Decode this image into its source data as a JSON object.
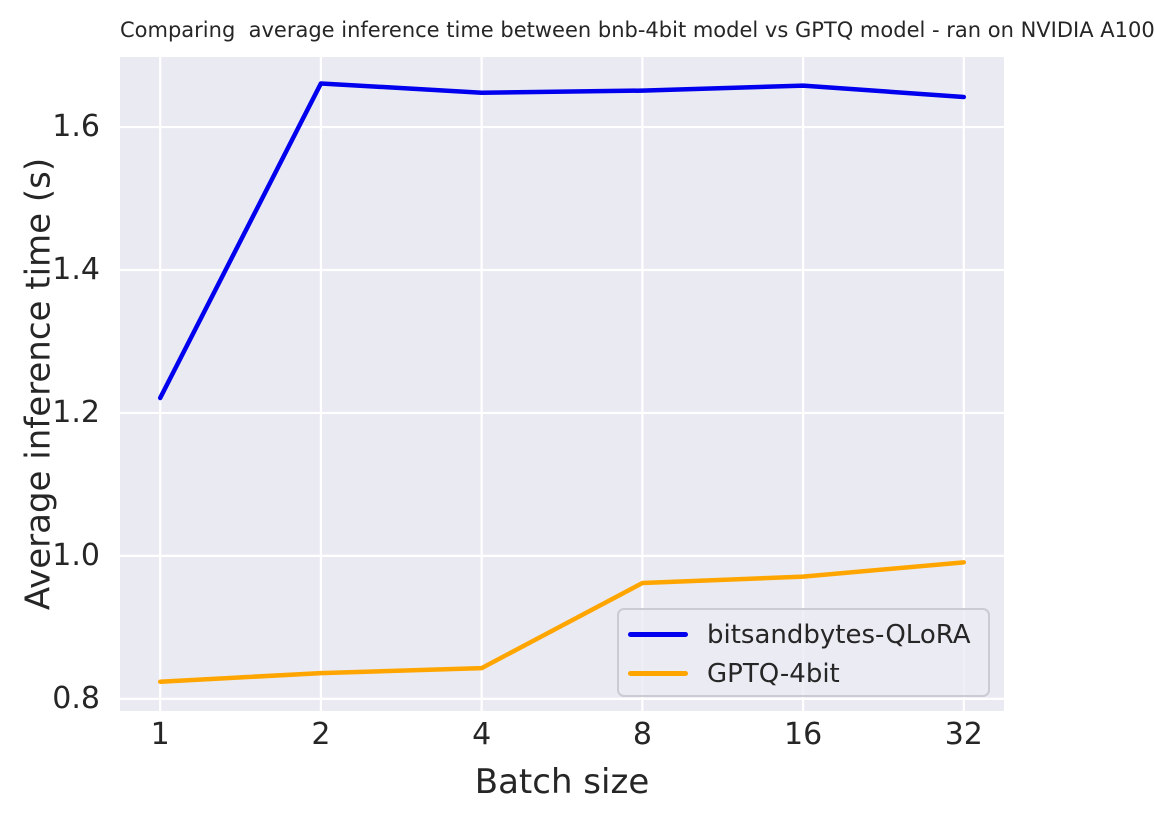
{
  "title": "Comparing  average inference time between bnb-4bit model vs GPTQ model - ran on NVIDIA A100",
  "chart_data": {
    "type": "line",
    "title": "Comparing  average inference time between bnb-4bit model vs GPTQ model - ran on NVIDIA A100",
    "xlabel": "Batch size",
    "ylabel": "Average inference time (s)",
    "categories": [
      1,
      2,
      4,
      8,
      16,
      32
    ],
    "x_tick_labels": [
      "1",
      "2",
      "4",
      "8",
      "16",
      "32"
    ],
    "y_ticks": [
      0.8,
      1.0,
      1.2,
      1.4,
      1.6
    ],
    "y_tick_labels": [
      "0.8",
      "1.0",
      "1.2",
      "1.4",
      "1.6"
    ],
    "ylim": [
      0.783,
      1.698
    ],
    "grid": true,
    "grid_color": "#ffffff",
    "plot_background": "#eaeaf2",
    "figure_background": "#ffffff",
    "text_color": "#262626",
    "legend_position": "lower right",
    "series": [
      {
        "name": "bitsandbytes-QLoRA",
        "color": "#0000ee",
        "values": [
          1.221,
          1.661,
          1.648,
          1.651,
          1.658,
          1.642
        ]
      },
      {
        "name": "GPTQ-4bit",
        "color": "#ffa500",
        "values": [
          0.824,
          0.836,
          0.843,
          0.962,
          0.971,
          0.991
        ]
      }
    ]
  }
}
